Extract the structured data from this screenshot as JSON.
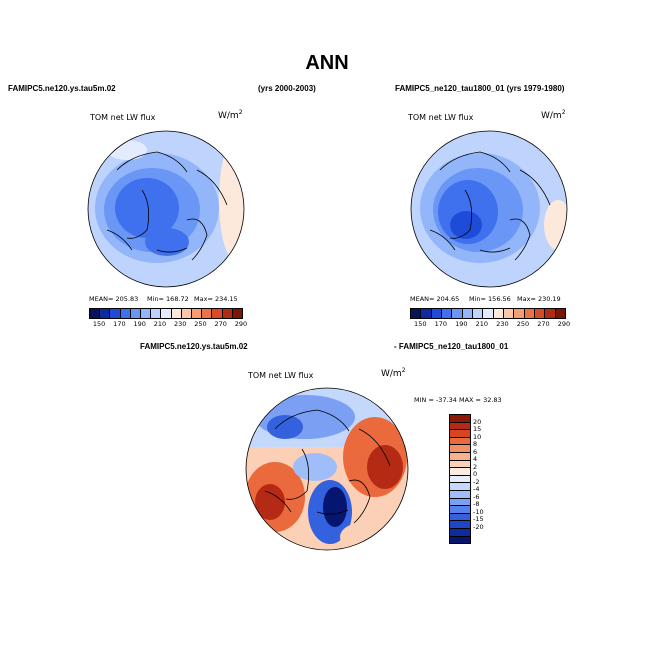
{
  "title": "ANN",
  "panels": {
    "left": {
      "case": "FAMIPC5.ne120.ys.tau5m.02",
      "years": "(yrs 2000-2003)",
      "variable": "TOM net LW flux",
      "units_base": "W/m",
      "units_exp": "2",
      "mean": "MEAN= 205.83",
      "min": "Min= 168.72",
      "max": "Max= 234.15"
    },
    "right": {
      "case": "FAMIPC5_ne120_tau1800_01 (yrs 1979-1980)",
      "variable": "TOM net LW flux",
      "units_base": "W/m",
      "units_exp": "2",
      "mean": "MEAN= 204.65",
      "min": "Min= 156.56",
      "max": "Max= 230.19"
    },
    "diff": {
      "case_a": "FAMIPC5.ne120.ys.tau5m.02",
      "case_b": "- FAMIPC5_ne120_tau1800_01",
      "variable": "TOM net LW flux",
      "units_base": "W/m",
      "units_exp": "2",
      "minmax": "MIN = -37.34  MAX =  32.83"
    }
  },
  "colorbar_abs": {
    "labels": [
      "150",
      "170",
      "190",
      "210",
      "230",
      "250",
      "270",
      "290"
    ],
    "colors": [
      "#07145c",
      "#0a2ca0",
      "#1e4cd8",
      "#3f70ee",
      "#6a96f6",
      "#93b6fa",
      "#bed4fc",
      "#e2ecfe",
      "#fde8dc",
      "#fbc7a7",
      "#f59e71",
      "#ec7346",
      "#d94a26",
      "#b22a14",
      "#7d1506"
    ]
  },
  "colorbar_diff": {
    "labels": [
      "20",
      "15",
      "10",
      "8",
      "6",
      "4",
      "2",
      "0",
      "-2",
      "-4",
      "-6",
      "-8",
      "-10",
      "-15",
      "-20"
    ],
    "colors": [
      "#8e1806",
      "#b52a14",
      "#d84524",
      "#ea6a3e",
      "#f38f63",
      "#f8b18c",
      "#fbd0b7",
      "#fdebdf",
      "#e5eefe",
      "#c4d8fc",
      "#9fbdf8",
      "#7b9ff3",
      "#5681ea",
      "#3461de",
      "#1f45c8",
      "#0f2c9e",
      "#061670"
    ]
  },
  "chart_data": [
    {
      "type": "heatmap",
      "title": "TOM net LW flux",
      "subtitle": "FAMIPC5.ne120.ys.tau5m.02 (yrs 2000-2003)",
      "units": "W/m2",
      "projection": "north polar stereographic",
      "stats": {
        "mean": 205.83,
        "min": 168.72,
        "max": 234.15
      },
      "levels": [
        150,
        170,
        190,
        210,
        230,
        250,
        270,
        290
      ]
    },
    {
      "type": "heatmap",
      "title": "TOM net LW flux",
      "subtitle": "FAMIPC5_ne120_tau1800_01 (yrs 1979-1980)",
      "units": "W/m2",
      "projection": "north polar stereographic",
      "stats": {
        "mean": 204.65,
        "min": 156.56,
        "max": 230.19
      },
      "levels": [
        150,
        170,
        190,
        210,
        230,
        250,
        270,
        290
      ]
    },
    {
      "type": "heatmap",
      "title": "TOM net LW flux",
      "subtitle": "FAMIPC5.ne120.ys.tau5m.02 - FAMIPC5_ne120_tau1800_01",
      "units": "W/m2",
      "projection": "north polar stereographic",
      "stats": {
        "min": -37.34,
        "max": 32.83
      },
      "levels": [
        -20,
        -15,
        -10,
        -8,
        -6,
        -4,
        -2,
        0,
        2,
        4,
        6,
        8,
        10,
        15,
        20
      ]
    }
  ]
}
